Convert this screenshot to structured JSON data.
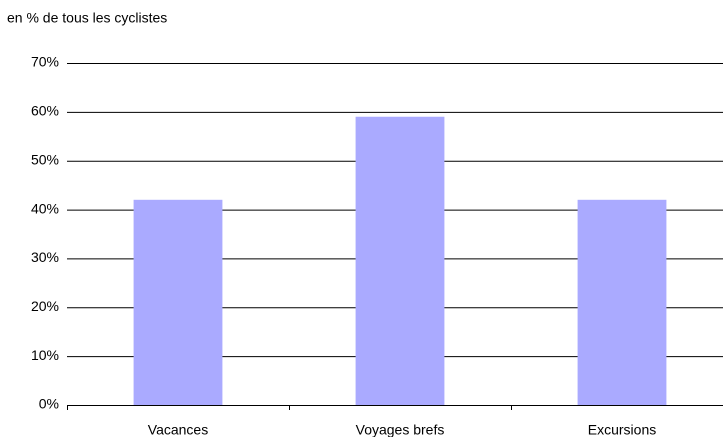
{
  "chart_data": {
    "type": "bar",
    "y_axis_label": "en % de tous les cyclistes",
    "categories": [
      "Vacances",
      "Voyages brefs",
      "Excursions"
    ],
    "values": [
      42,
      59,
      42
    ],
    "color": "#aaaaff",
    "ylim": [
      0,
      70
    ],
    "yticks": [
      {
        "value": 0,
        "label": "0%"
      },
      {
        "value": 10,
        "label": "10%"
      },
      {
        "value": 20,
        "label": "20%"
      },
      {
        "value": 30,
        "label": "30%"
      },
      {
        "value": 40,
        "label": "40%"
      },
      {
        "value": 50,
        "label": "50%"
      },
      {
        "value": 60,
        "label": "60%"
      },
      {
        "value": 70,
        "label": "70%"
      }
    ],
    "grid": true
  }
}
